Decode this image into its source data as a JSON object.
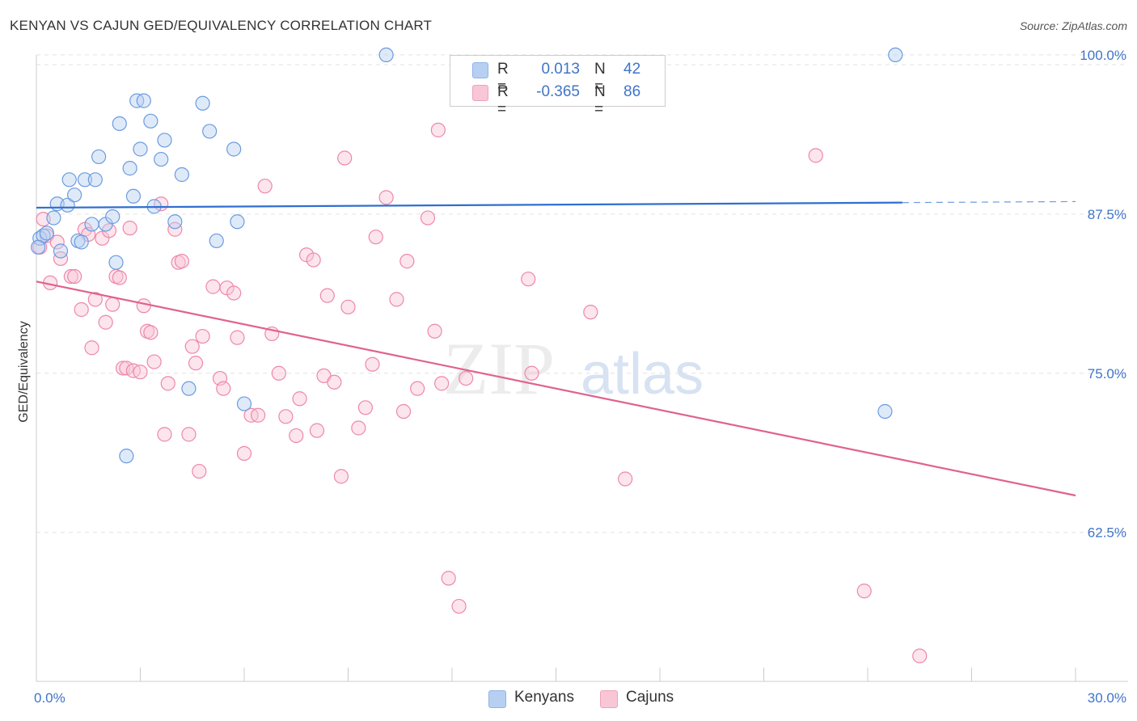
{
  "header": {
    "title": "KENYAN VS CAJUN GED/EQUIVALENCY CORRELATION CHART",
    "source": "Source: ZipAtlas.com"
  },
  "watermark": {
    "zip": "ZIP",
    "atlas": "atlas"
  },
  "legend": {
    "rows": [
      {
        "r_label": "R =",
        "r_value": "0.013",
        "n_label": "N =",
        "n_value": "42",
        "color": "#b7d0f2"
      },
      {
        "r_label": "R =",
        "r_value": "-0.365",
        "n_label": "N =",
        "n_value": "86",
        "color": "#f9c6d6"
      }
    ]
  },
  "bottom_legend": {
    "kenyans": "Kenyans",
    "cajuns": "Cajuns"
  },
  "chart_data": {
    "type": "scatter",
    "ylabel": "GED/Equivalency",
    "xlim": [
      0,
      30
    ],
    "ylim": [
      50.8,
      101.2
    ],
    "x_tick_labels": [
      "0.0%",
      "30.0%"
    ],
    "y_ticks": [
      62.5,
      75.0,
      87.5,
      100.0
    ],
    "y_tick_labels": [
      "62.5%",
      "75.0%",
      "87.5%",
      "100.0%"
    ],
    "grid": true,
    "colors": {
      "kenyans": "#6b9be0",
      "cajuns": "#ee88a8",
      "kenyans_line": "#2f6fd0",
      "cajuns_line": "#e0628f"
    },
    "series": [
      {
        "name": "Kenyans",
        "trend": {
          "x": [
            0,
            25.0
          ],
          "y": [
            88.0,
            88.4
          ],
          "dashed_to_x": 30
        },
        "points": [
          [
            0.1,
            85.6
          ],
          [
            0.2,
            85.8
          ],
          [
            0.3,
            86.0
          ],
          [
            0.5,
            87.2
          ],
          [
            0.6,
            88.3
          ],
          [
            0.7,
            84.6
          ],
          [
            0.9,
            88.2
          ],
          [
            0.95,
            90.2
          ],
          [
            1.1,
            89.0
          ],
          [
            1.2,
            85.4
          ],
          [
            1.3,
            85.3
          ],
          [
            1.4,
            90.2
          ],
          [
            1.6,
            86.7
          ],
          [
            1.7,
            90.2
          ],
          [
            1.8,
            92.0
          ],
          [
            2.0,
            86.7
          ],
          [
            2.2,
            87.3
          ],
          [
            2.3,
            83.7
          ],
          [
            2.4,
            94.6
          ],
          [
            2.6,
            68.5
          ],
          [
            2.7,
            91.1
          ],
          [
            2.8,
            88.9
          ],
          [
            2.9,
            96.4
          ],
          [
            3.0,
            92.6
          ],
          [
            3.1,
            96.4
          ],
          [
            3.3,
            94.8
          ],
          [
            3.4,
            88.1
          ],
          [
            3.6,
            91.8
          ],
          [
            3.7,
            93.3
          ],
          [
            4.0,
            86.9
          ],
          [
            4.2,
            90.6
          ],
          [
            4.4,
            73.8
          ],
          [
            4.8,
            96.2
          ],
          [
            5.0,
            94.0
          ],
          [
            5.2,
            85.4
          ],
          [
            5.7,
            92.6
          ],
          [
            5.8,
            86.9
          ],
          [
            6.0,
            72.6
          ],
          [
            10.1,
            100.0
          ],
          [
            24.5,
            72.0
          ],
          [
            24.8,
            100.0
          ],
          [
            0.05,
            84.9
          ]
        ]
      },
      {
        "name": "Cajuns",
        "trend": {
          "x": [
            0,
            30
          ],
          "y": [
            82.2,
            65.4
          ]
        },
        "points": [
          [
            0.1,
            84.9
          ],
          [
            0.2,
            87.1
          ],
          [
            0.3,
            85.8
          ],
          [
            0.4,
            82.1
          ],
          [
            0.6,
            85.3
          ],
          [
            0.7,
            84.0
          ],
          [
            1.0,
            82.6
          ],
          [
            1.1,
            82.6
          ],
          [
            1.3,
            80.0
          ],
          [
            1.4,
            86.3
          ],
          [
            1.5,
            85.9
          ],
          [
            1.6,
            77.0
          ],
          [
            1.7,
            80.8
          ],
          [
            1.9,
            85.6
          ],
          [
            2.0,
            79.0
          ],
          [
            2.1,
            86.2
          ],
          [
            2.2,
            80.4
          ],
          [
            2.3,
            82.6
          ],
          [
            2.4,
            82.5
          ],
          [
            2.5,
            75.4
          ],
          [
            2.6,
            75.4
          ],
          [
            2.7,
            86.4
          ],
          [
            2.8,
            75.2
          ],
          [
            3.0,
            75.1
          ],
          [
            3.1,
            80.3
          ],
          [
            3.2,
            78.3
          ],
          [
            3.3,
            78.2
          ],
          [
            3.4,
            75.9
          ],
          [
            3.6,
            88.3
          ],
          [
            3.7,
            70.2
          ],
          [
            3.8,
            74.2
          ],
          [
            4.0,
            86.3
          ],
          [
            4.1,
            83.7
          ],
          [
            4.2,
            83.8
          ],
          [
            4.4,
            70.2
          ],
          [
            4.5,
            77.1
          ],
          [
            4.6,
            75.8
          ],
          [
            4.7,
            67.3
          ],
          [
            4.8,
            77.9
          ],
          [
            5.1,
            81.8
          ],
          [
            5.3,
            74.6
          ],
          [
            5.4,
            73.8
          ],
          [
            5.5,
            81.7
          ],
          [
            5.7,
            81.3
          ],
          [
            5.8,
            77.8
          ],
          [
            6.0,
            68.7
          ],
          [
            6.2,
            71.7
          ],
          [
            6.4,
            71.7
          ],
          [
            6.6,
            89.7
          ],
          [
            6.8,
            78.1
          ],
          [
            7.0,
            75.0
          ],
          [
            7.2,
            71.6
          ],
          [
            7.5,
            70.1
          ],
          [
            7.6,
            73.0
          ],
          [
            7.8,
            84.3
          ],
          [
            8.0,
            83.9
          ],
          [
            8.1,
            70.5
          ],
          [
            8.3,
            74.8
          ],
          [
            8.4,
            81.1
          ],
          [
            8.6,
            74.3
          ],
          [
            8.8,
            66.9
          ],
          [
            8.9,
            91.9
          ],
          [
            9.0,
            80.2
          ],
          [
            9.3,
            70.7
          ],
          [
            9.5,
            72.3
          ],
          [
            9.7,
            75.7
          ],
          [
            9.8,
            85.7
          ],
          [
            10.1,
            88.8
          ],
          [
            10.4,
            80.8
          ],
          [
            10.6,
            72.0
          ],
          [
            10.7,
            83.8
          ],
          [
            11.0,
            73.8
          ],
          [
            11.3,
            87.2
          ],
          [
            11.5,
            78.3
          ],
          [
            11.6,
            94.1
          ],
          [
            11.7,
            74.2
          ],
          [
            11.9,
            58.9
          ],
          [
            12.2,
            56.7
          ],
          [
            12.4,
            74.6
          ],
          [
            14.2,
            82.4
          ],
          [
            14.3,
            75.0
          ],
          [
            16.0,
            79.8
          ],
          [
            17.0,
            66.7
          ],
          [
            22.5,
            92.1
          ],
          [
            23.9,
            57.9
          ],
          [
            25.5,
            52.8
          ]
        ]
      }
    ]
  }
}
